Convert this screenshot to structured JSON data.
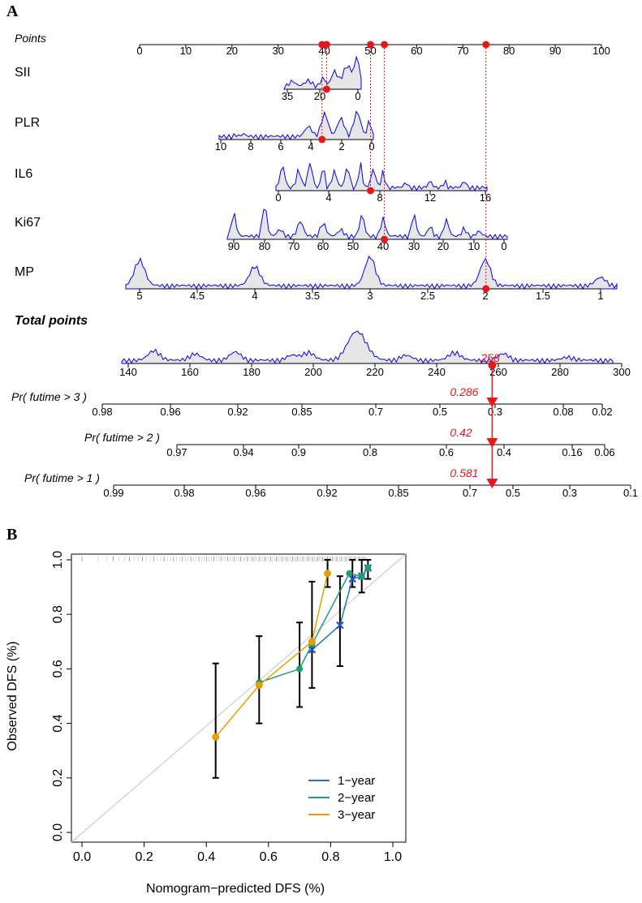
{
  "panel_a_label": "A",
  "panel_b_label": "B",
  "chart_data": [
    {
      "type": "nomogram",
      "title": "",
      "points_axis": {
        "label": "Points",
        "ticks": [
          "0",
          "10",
          "20",
          "30",
          "40",
          "50",
          "60",
          "70",
          "80",
          "90",
          "100"
        ]
      },
      "variables": [
        {
          "name": "SII",
          "ticks": [
            "35",
            "20",
            "0"
          ],
          "point_value": 40.5
        },
        {
          "name": "PLR",
          "ticks": [
            "10",
            "8",
            "6",
            "4",
            "2",
            "0"
          ],
          "point_value": 39.5
        },
        {
          "name": "IL6",
          "ticks": [
            "0",
            "4",
            "8",
            "12",
            "16"
          ],
          "point_value": 50
        },
        {
          "name": "Ki67",
          "ticks": [
            "90",
            "80",
            "70",
            "60",
            "50",
            "40",
            "30",
            "20",
            "10",
            "0"
          ],
          "point_value": 53
        },
        {
          "name": "MP",
          "ticks": [
            "5",
            "4.5",
            "4",
            "3.5",
            "3",
            "2.5",
            "2",
            "1.5",
            "1"
          ],
          "point_value": 75
        }
      ],
      "total_points": {
        "label": "Total points",
        "ticks": [
          "140",
          "160",
          "180",
          "200",
          "220",
          "240",
          "260",
          "280",
          "300"
        ],
        "value": "258"
      },
      "probabilities": [
        {
          "label": "Pr( futime > 3 )",
          "ticks": [
            "0.98",
            "0.96",
            "0.92",
            "0.85",
            "0.7",
            "0.5",
            "0.3",
            "0.08",
            "0.02"
          ],
          "value": "0.286"
        },
        {
          "label": "Pr( futime > 2 )",
          "ticks": [
            "0.97",
            "0.94",
            "0.9",
            "0.8",
            "0.6",
            "0.4",
            "0.16",
            "0.06"
          ],
          "value": "0.42"
        },
        {
          "label": "Pr( futime > 1 )",
          "ticks": [
            "0.99",
            "0.98",
            "0.96",
            "0.92",
            "0.85",
            "0.7",
            "0.5",
            "0.3",
            "0.1"
          ],
          "value": "0.581"
        }
      ]
    },
    {
      "type": "line",
      "title": "",
      "xlabel": "Nomogram−predicted DFS (%)",
      "ylabel": "Observed DFS (%)",
      "xlim": [
        0.0,
        1.0
      ],
      "ylim": [
        0.0,
        1.0
      ],
      "x_ticks": [
        "0.0",
        "0.2",
        "0.4",
        "0.6",
        "0.8",
        "1.0"
      ],
      "y_ticks": [
        "0.0",
        "0.2",
        "0.4",
        "0.6",
        "0.8",
        "1.0"
      ],
      "legend_position": "bottom-right",
      "series": [
        {
          "name": "1−year",
          "color": "#1f78b4",
          "x": [
            0.74,
            0.83,
            0.87,
            0.9,
            0.92
          ],
          "y": [
            0.67,
            0.76,
            0.93,
            0.94,
            0.97
          ]
        },
        {
          "name": "2−year",
          "color": "#1b9e77",
          "x": [
            0.57,
            0.7,
            0.74,
            0.86,
            0.9,
            0.92
          ],
          "y": [
            0.55,
            0.6,
            0.69,
            0.95,
            0.94,
            0.97
          ]
        },
        {
          "name": "3−year",
          "color": "#e69f00",
          "x": [
            0.43,
            0.57,
            0.74,
            0.79
          ],
          "y": [
            0.35,
            0.54,
            0.7,
            0.95
          ]
        }
      ],
      "error_bars": [
        {
          "x": 0.43,
          "low": 0.2,
          "high": 0.62
        },
        {
          "x": 0.57,
          "low": 0.4,
          "high": 0.72
        },
        {
          "x": 0.7,
          "low": 0.46,
          "high": 0.77
        },
        {
          "x": 0.74,
          "low": 0.53,
          "high": 0.92
        },
        {
          "x": 0.79,
          "low": 0.9,
          "high": 1.0
        },
        {
          "x": 0.83,
          "low": 0.61,
          "high": 0.94
        },
        {
          "x": 0.87,
          "low": 0.9,
          "high": 1.0
        },
        {
          "x": 0.9,
          "low": 0.88,
          "high": 1.0
        },
        {
          "x": 0.92,
          "low": 0.93,
          "high": 1.0
        }
      ]
    }
  ]
}
